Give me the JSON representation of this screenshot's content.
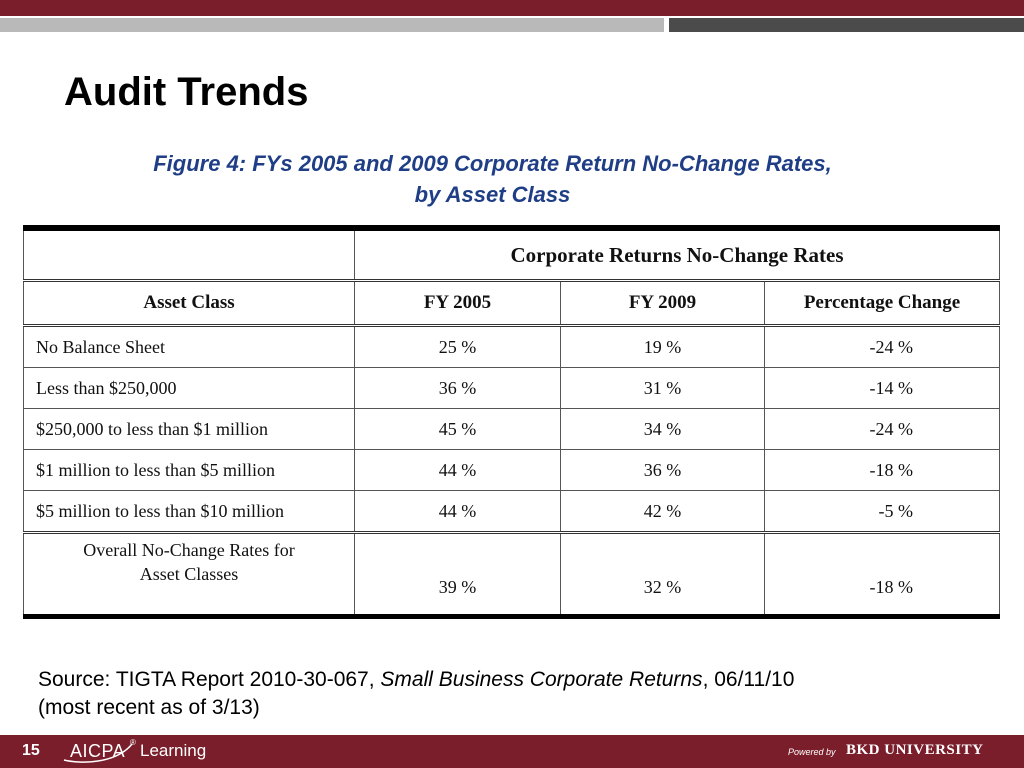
{
  "slide": {
    "title": "Audit Trends",
    "number": "15"
  },
  "colors": {
    "brand_maroon": "#7a1e2b",
    "caption_blue": "#1f3e86",
    "strip_light": "#b9b9b9",
    "strip_dark": "#4b4b4b"
  },
  "figure": {
    "caption_line1": "Figure 4:  FYs 2005 and 2009 Corporate Return No-Change Rates,",
    "caption_line2": "by Asset Class"
  },
  "table": {
    "group_header": "Corporate Returns No-Change Rates",
    "columns": [
      "Asset Class",
      "FY 2005",
      "FY 2009",
      "Percentage Change"
    ],
    "rows": [
      {
        "asset_class": "No Balance Sheet",
        "fy2005": "25 %",
        "fy2009": "19 %",
        "change": "-24 %"
      },
      {
        "asset_class": "Less than $250,000",
        "fy2005": "36 %",
        "fy2009": "31 %",
        "change": "-14 %"
      },
      {
        "asset_class": "$250,000 to less than $1 million",
        "fy2005": "45 %",
        "fy2009": "34 %",
        "change": "-24 %"
      },
      {
        "asset_class": "$1 million to less than $5 million",
        "fy2005": "44 %",
        "fy2009": "36 %",
        "change": "-18 %"
      },
      {
        "asset_class": "$5 million to less than $10 million",
        "fy2005": "44 %",
        "fy2009": "42 %",
        "change": "-5 %"
      }
    ],
    "overall": {
      "label_line1": "Overall No-Change Rates for",
      "label_line2": "Asset Classes",
      "fy2005": "39 %",
      "fy2009": "32 %",
      "change": "-18 %"
    }
  },
  "source": {
    "prefix": "Source: TIGTA Report 2010-30-067, ",
    "italic": "Small Business Corporate Returns",
    "suffix": ", 06/11/10",
    "line2": "(most recent as of 3/13)"
  },
  "footer": {
    "logo_mark": "AICPA",
    "logo_reg": "®",
    "logo_word": "Learning",
    "powered_by": "Powered by",
    "bkd": "BKD UNIVERSITY"
  }
}
